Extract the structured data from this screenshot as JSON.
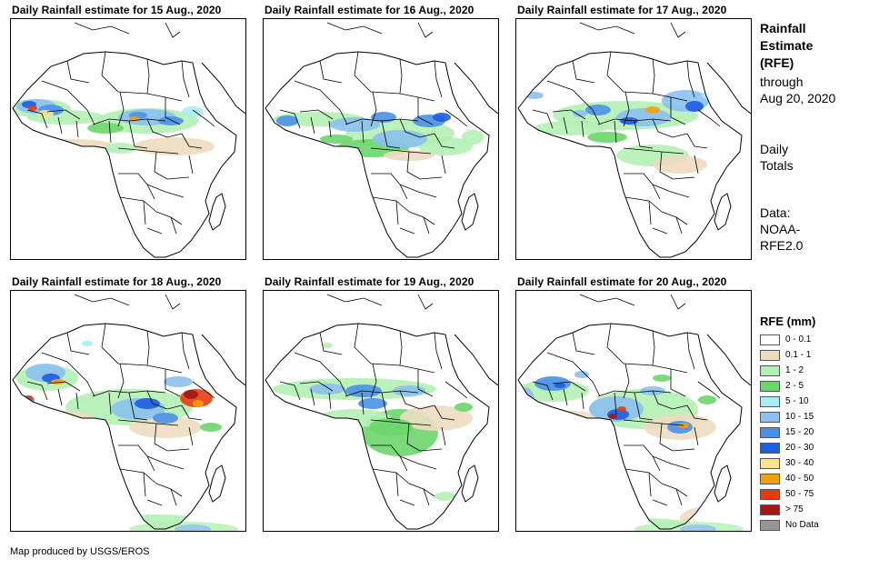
{
  "panels": [
    {
      "title": "Daily Rainfall estimate for 15 Aug., 2020",
      "pattern": "day15"
    },
    {
      "title": "Daily Rainfall estimate for 16 Aug., 2020",
      "pattern": "day16"
    },
    {
      "title": "Daily Rainfall estimate for 17 Aug., 2020",
      "pattern": "day17"
    },
    {
      "title": "Daily Rainfall estimate for 18 Aug., 2020",
      "pattern": "day18"
    },
    {
      "title": "Daily Rainfall estimate for 19 Aug., 2020",
      "pattern": "day19"
    },
    {
      "title": "Daily Rainfall estimate for 20 Aug., 2020",
      "pattern": "day20"
    }
  ],
  "side": {
    "title_line1": "Rainfall",
    "title_line2": "Estimate",
    "title_line3": "(RFE)",
    "through_line1": "through",
    "through_line2": "Aug 20, 2020",
    "daily_line1": "Daily",
    "daily_line2": "Totals",
    "data_line1": "Data:",
    "data_line2": "NOAA-",
    "data_line3": "RFE2.0"
  },
  "legend": {
    "title": "RFE (mm)",
    "items": [
      {
        "label": "0 - 0.1",
        "color": "#ffffff"
      },
      {
        "label": "0.1 - 1",
        "color": "#ecdcc0"
      },
      {
        "label": "1 - 2",
        "color": "#b4f0b4"
      },
      {
        "label": "2 - 5",
        "color": "#6cd66c"
      },
      {
        "label": "5 - 10",
        "color": "#a8ecf4"
      },
      {
        "label": "10 - 15",
        "color": "#8cc0f0"
      },
      {
        "label": "15 - 20",
        "color": "#4a90e8"
      },
      {
        "label": "20 - 30",
        "color": "#1e5ce0"
      },
      {
        "label": "30 - 40",
        "color": "#f8e68c"
      },
      {
        "label": "40 - 50",
        "color": "#f4a00c"
      },
      {
        "label": "50 - 75",
        "color": "#e83c10"
      },
      {
        "label": "> 75",
        "color": "#a01818"
      },
      {
        "label": "No Data",
        "color": "#969696"
      }
    ]
  },
  "footer": "Map produced by USGS/EROS"
}
